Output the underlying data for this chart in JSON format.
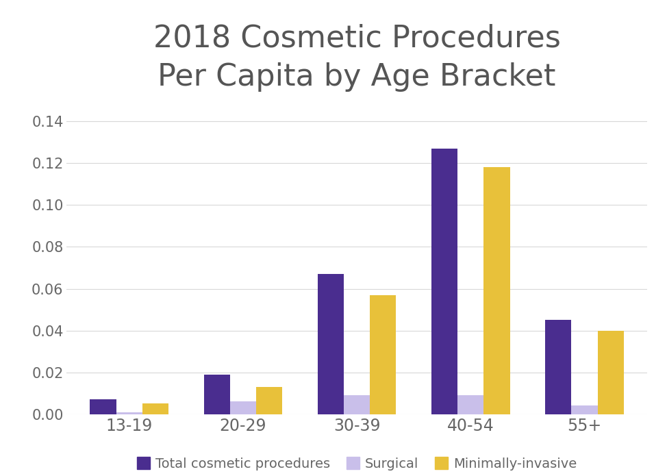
{
  "title_line1": "2018 Cosmetic Procedures",
  "title_line2": "Per Capita by Age Bracket",
  "categories": [
    "13-19",
    "20-29",
    "30-39",
    "40-54",
    "55+"
  ],
  "series": {
    "Total cosmetic procedures": [
      0.007,
      0.019,
      0.067,
      0.127,
      0.045
    ],
    "Surgical": [
      0.001,
      0.006,
      0.009,
      0.009,
      0.004
    ],
    "Minimally-invasive": [
      0.005,
      0.013,
      0.057,
      0.118,
      0.04
    ]
  },
  "colors": {
    "Total cosmetic procedures": "#4a2d8f",
    "Surgical": "#c9bfea",
    "Minimally-invasive": "#e8c13a"
  },
  "ylim": [
    0,
    0.148
  ],
  "yticks": [
    0.0,
    0.02,
    0.04,
    0.06,
    0.08,
    0.1,
    0.12,
    0.14
  ],
  "background_color": "#ffffff",
  "grid_color": "#d8d8d8",
  "title_fontsize": 32,
  "tick_fontsize": 15,
  "legend_fontsize": 14,
  "bar_width": 0.23,
  "title_color": "#555555",
  "tick_color": "#666666"
}
